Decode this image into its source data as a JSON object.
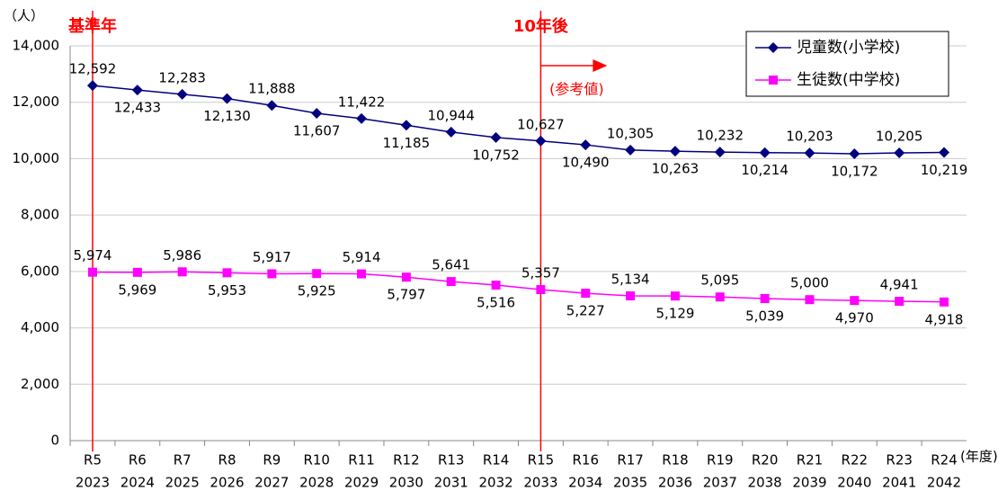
{
  "chart_data": {
    "type": "line",
    "y_unit_label": "（人）",
    "x_unit_label": "(年度)",
    "categories": [
      [
        "R5",
        "2023"
      ],
      [
        "R6",
        "2024"
      ],
      [
        "R7",
        "2025"
      ],
      [
        "R8",
        "2026"
      ],
      [
        "R9",
        "2027"
      ],
      [
        "R10",
        "2028"
      ],
      [
        "R11",
        "2029"
      ],
      [
        "R12",
        "2030"
      ],
      [
        "R13",
        "2031"
      ],
      [
        "R14",
        "2032"
      ],
      [
        "R15",
        "2033"
      ],
      [
        "R16",
        "2034"
      ],
      [
        "R17",
        "2035"
      ],
      [
        "R18",
        "2036"
      ],
      [
        "R19",
        "2037"
      ],
      [
        "R20",
        "2038"
      ],
      [
        "R21",
        "2039"
      ],
      [
        "R22",
        "2040"
      ],
      [
        "R23",
        "2041"
      ],
      [
        "R24",
        "2042"
      ]
    ],
    "series": [
      {
        "name": "児童数(小学校)",
        "color": "#000080",
        "marker": "diamond",
        "values": [
          12592,
          12433,
          12283,
          12130,
          11888,
          11607,
          11422,
          11185,
          10944,
          10752,
          10627,
          10490,
          10305,
          10263,
          10232,
          10214,
          10203,
          10172,
          10205,
          10219
        ],
        "value_labels": [
          "12,592",
          "12,433",
          "12,283",
          "12,130",
          "11,888",
          "11,607",
          "11,422",
          "11,185",
          "10,944",
          "10,752",
          "10,627",
          "10,490",
          "10,305",
          "10,263",
          "10,232",
          "10,214",
          "10,203",
          "10,172",
          "10,205",
          "10,219"
        ]
      },
      {
        "name": "生徒数(中学校)",
        "color": "#ff00ff",
        "marker": "square",
        "values": [
          5974,
          5969,
          5986,
          5953,
          5917,
          5925,
          5914,
          5797,
          5641,
          5516,
          5357,
          5227,
          5134,
          5129,
          5095,
          5039,
          5000,
          4970,
          4941,
          4918
        ],
        "value_labels": [
          "5,974",
          "5,969",
          "5,986",
          "5,953",
          "5,917",
          "5,925",
          "5,914",
          "5,797",
          "5,641",
          "5,516",
          "5,357",
          "5,227",
          "5,134",
          "5,129",
          "5,095",
          "5,039",
          "5,000",
          "4,970",
          "4,941",
          "4,918"
        ]
      }
    ],
    "ylim": [
      0,
      14000
    ],
    "yticks": [
      0,
      {
        "value": 2000,
        "label": "2,000"
      },
      {
        "value": 4000,
        "label": "4,000"
      },
      {
        "value": 6000,
        "label": "6,000"
      },
      {
        "value": 8000,
        "label": "8,000"
      },
      {
        "value": 10000,
        "label": "10,000"
      },
      {
        "value": 12000,
        "label": "12,000"
      },
      {
        "value": 14000,
        "label": "14,000"
      }
    ],
    "grid": true,
    "legend": "upper right",
    "reference_lines": [
      {
        "category_index": 0,
        "label": "基準年",
        "color": "#ff0000"
      },
      {
        "category_index": 10,
        "label": "10年後",
        "color": "#ff0000",
        "note": "(参考値)"
      }
    ]
  }
}
